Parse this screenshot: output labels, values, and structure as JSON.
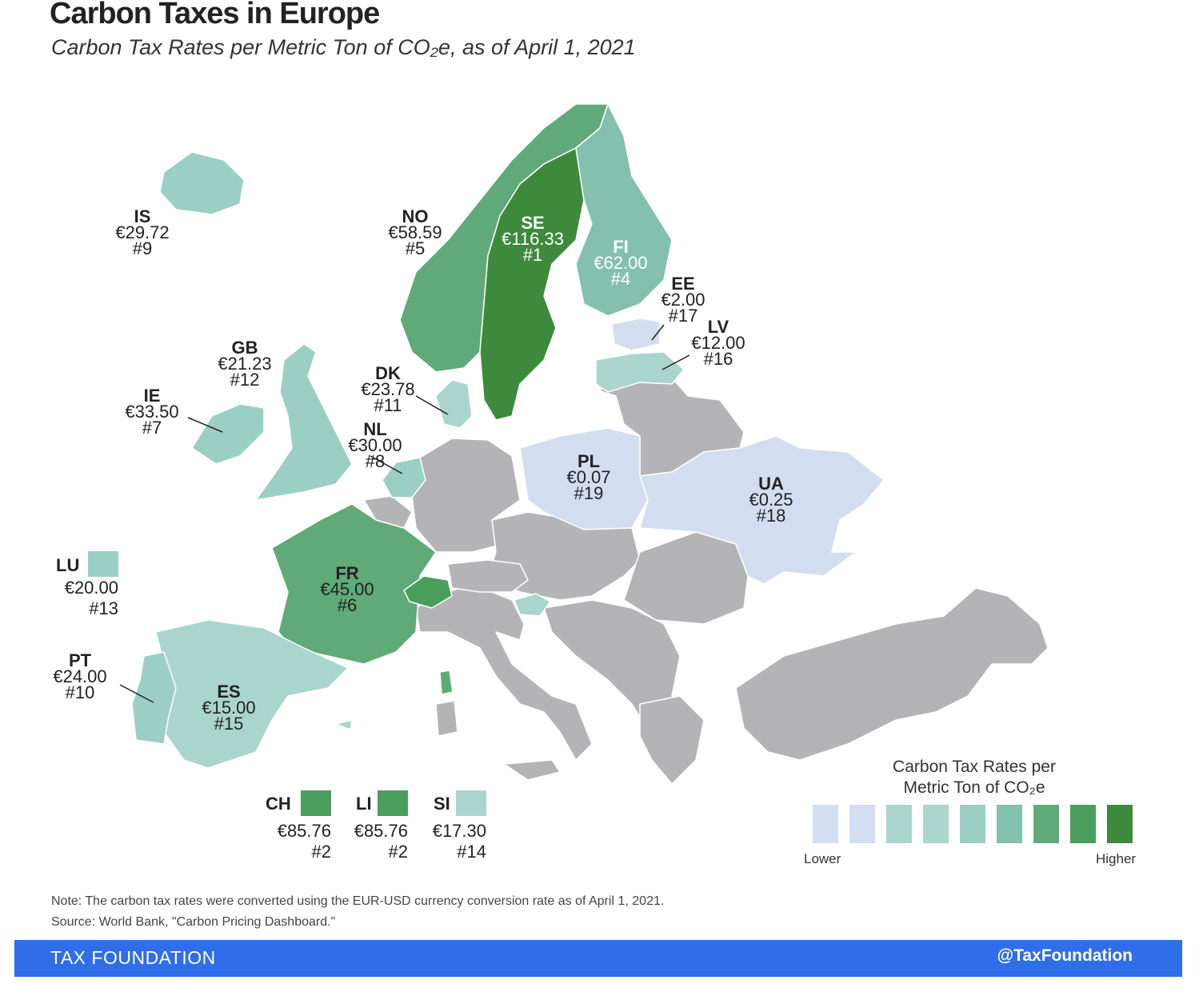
{
  "title": "Carbon Taxes in Europe",
  "subtitle": "Carbon Tax Rates per Metric Ton of CO₂e, as of April 1, 2021",
  "colors": {
    "no_tax": "#b4b4b6",
    "tier1": "#d2def0",
    "tier2": "#aad5cc",
    "tier3": "#9ccfc4",
    "tier4": "#84c0ae",
    "tier5": "#5faa78",
    "tier6": "#4b9d5c",
    "tier7": "#3e8a3c",
    "border": "#ffffff",
    "footer": "#2f6ee8"
  },
  "countries": [
    {
      "code": "IS",
      "rate": "€29.72",
      "rank": "#9"
    },
    {
      "code": "NO",
      "rate": "€58.59",
      "rank": "#5"
    },
    {
      "code": "SE",
      "rate": "€116.33",
      "rank": "#1"
    },
    {
      "code": "FI",
      "rate": "€62.00",
      "rank": "#4"
    },
    {
      "code": "EE",
      "rate": "€2.00",
      "rank": "#17"
    },
    {
      "code": "LV",
      "rate": "€12.00",
      "rank": "#16"
    },
    {
      "code": "GB",
      "rate": "€21.23",
      "rank": "#12"
    },
    {
      "code": "DK",
      "rate": "€23.78",
      "rank": "#11"
    },
    {
      "code": "IE",
      "rate": "€33.50",
      "rank": "#7"
    },
    {
      "code": "NL",
      "rate": "€30.00",
      "rank": "#8"
    },
    {
      "code": "PL",
      "rate": "€0.07",
      "rank": "#19"
    },
    {
      "code": "UA",
      "rate": "€0.25",
      "rank": "#18"
    },
    {
      "code": "FR",
      "rate": "€45.00",
      "rank": "#6"
    },
    {
      "code": "PT",
      "rate": "€24.00",
      "rank": "#10"
    },
    {
      "code": "ES",
      "rate": "€15.00",
      "rank": "#15"
    }
  ],
  "insets": [
    {
      "code": "LU",
      "rate": "€20.00",
      "rank": "#13"
    },
    {
      "code": "CH",
      "rate": "€85.76",
      "rank": "#2"
    },
    {
      "code": "LI",
      "rate": "€85.76",
      "rank": "#2"
    },
    {
      "code": "SI",
      "rate": "€17.30",
      "rank": "#14"
    }
  ],
  "legend": {
    "title_line1": "Carbon Tax Rates per",
    "title_line2": "Metric Ton of CO₂e",
    "low": "Lower",
    "high": "Higher",
    "colors": [
      "#d2def0",
      "#d2def0",
      "#aad5cc",
      "#aad5cc",
      "#9ccfc4",
      "#84c0ae",
      "#5faa78",
      "#4b9d5c",
      "#3e8a3c"
    ]
  },
  "note": "Note: The carbon tax rates were converted using the EUR-USD currency conversion rate as of April 1, 2021.",
  "source": "Source: World Bank, \"Carbon Pricing Dashboard.\"",
  "footer": {
    "brand": "TAX FOUNDATION",
    "handle": "@TaxFoundation"
  }
}
